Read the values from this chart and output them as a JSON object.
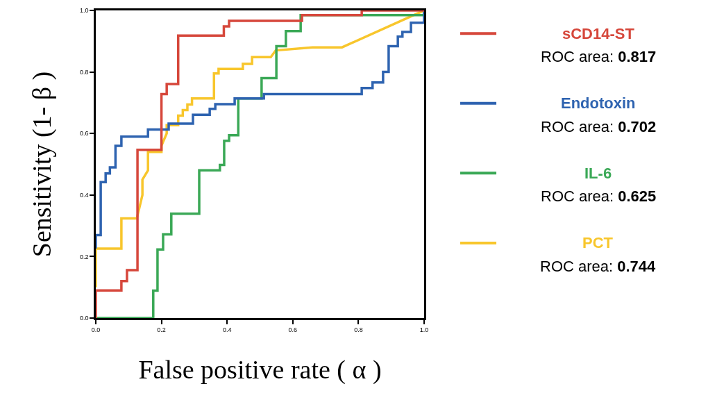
{
  "chart_data": {
    "type": "step",
    "xlabel": "False positive rate ( α )",
    "ylabel": "Sensitivity (1- β )",
    "xlim": [
      0,
      1
    ],
    "ylim": [
      0,
      1
    ],
    "xticks": [
      {
        "value": 0,
        "label": "0.0"
      },
      {
        "value": 0.2,
        "label": "0.2"
      },
      {
        "value": 0.4,
        "label": "0.4"
      },
      {
        "value": 0.6,
        "label": "0.6"
      },
      {
        "value": 0.8,
        "label": "0.8"
      },
      {
        "value": 1,
        "label": "1.0"
      }
    ],
    "yticks": [
      {
        "value": 0,
        "label": "0.0"
      },
      {
        "value": 0.2,
        "label": "0.2"
      },
      {
        "value": 0.4,
        "label": "0.4"
      },
      {
        "value": 0.6,
        "label": "0.6"
      },
      {
        "value": 0.8,
        "label": "0.8"
      },
      {
        "value": 1,
        "label": "1.0"
      }
    ],
    "legend": "right",
    "marker": "none",
    "line_style": "solid",
    "series": [
      {
        "name": "sCD14-ST",
        "color": "#d6473b",
        "x": [
          0,
          0,
          0.078,
          0.095,
          0.127,
          0.2,
          0.216,
          0.251,
          0.39,
          0.406,
          0.628,
          0.81,
          1.0
        ],
        "values": [
          0,
          0.09,
          0.12,
          0.156,
          0.547,
          0.728,
          0.761,
          0.918,
          0.948,
          0.966,
          0.985,
          1.0,
          1.0
        ]
      },
      {
        "name": "Endotoxin",
        "color": "#2e63b0",
        "x": [
          0,
          0,
          0.015,
          0.03,
          0.043,
          0.06,
          0.078,
          0.159,
          0.222,
          0.296,
          0.347,
          0.364,
          0.423,
          0.512,
          0.81,
          0.843,
          0.875,
          0.892,
          0.92,
          0.934,
          0.96,
          1.0
        ],
        "values": [
          0.226,
          0.27,
          0.442,
          0.47,
          0.49,
          0.56,
          0.59,
          0.613,
          0.632,
          0.661,
          0.68,
          0.695,
          0.714,
          0.728,
          0.748,
          0.766,
          0.8,
          0.884,
          0.915,
          0.93,
          0.96,
          1.0
        ]
      },
      {
        "name": "IL-6",
        "color": "#3aa856",
        "x": [
          0,
          0.175,
          0.188,
          0.205,
          0.23,
          0.315,
          0.378,
          0.391,
          0.406,
          0.434,
          0.505,
          0.55,
          0.579,
          0.624,
          1.0,
          1.0
        ],
        "values": [
          0,
          0.089,
          0.223,
          0.272,
          0.339,
          0.48,
          0.498,
          0.576,
          0.594,
          0.714,
          0.78,
          0.884,
          0.933,
          0.985,
          0.985,
          1.0
        ]
      },
      {
        "name": "PCT",
        "type": "line",
        "color": "#f8c62c",
        "x": [
          0,
          0,
          0.078,
          0.078,
          0.125,
          0.142,
          0.142,
          0.159,
          0.159,
          0.2,
          0.2,
          0.216,
          0.216,
          0.251,
          0.251,
          0.265,
          0.265,
          0.279,
          0.279,
          0.293,
          0.293,
          0.36,
          0.36,
          0.374,
          0.374,
          0.448,
          0.448,
          0.476,
          0.476,
          0.533,
          0.548,
          0.66,
          0.75,
          1.0
        ],
        "values": [
          0.1,
          0.226,
          0.226,
          0.324,
          0.324,
          0.4,
          0.45,
          0.48,
          0.54,
          0.54,
          0.56,
          0.6,
          0.627,
          0.627,
          0.658,
          0.658,
          0.676,
          0.676,
          0.694,
          0.694,
          0.714,
          0.714,
          0.795,
          0.795,
          0.81,
          0.81,
          0.826,
          0.826,
          0.848,
          0.848,
          0.87,
          0.88,
          0.88,
          1.0
        ]
      }
    ],
    "annotations": [
      "ROC area: 0.817",
      "ROC area: 0.702",
      "ROC area: 0.625",
      "ROC area: 0.744"
    ]
  }
}
